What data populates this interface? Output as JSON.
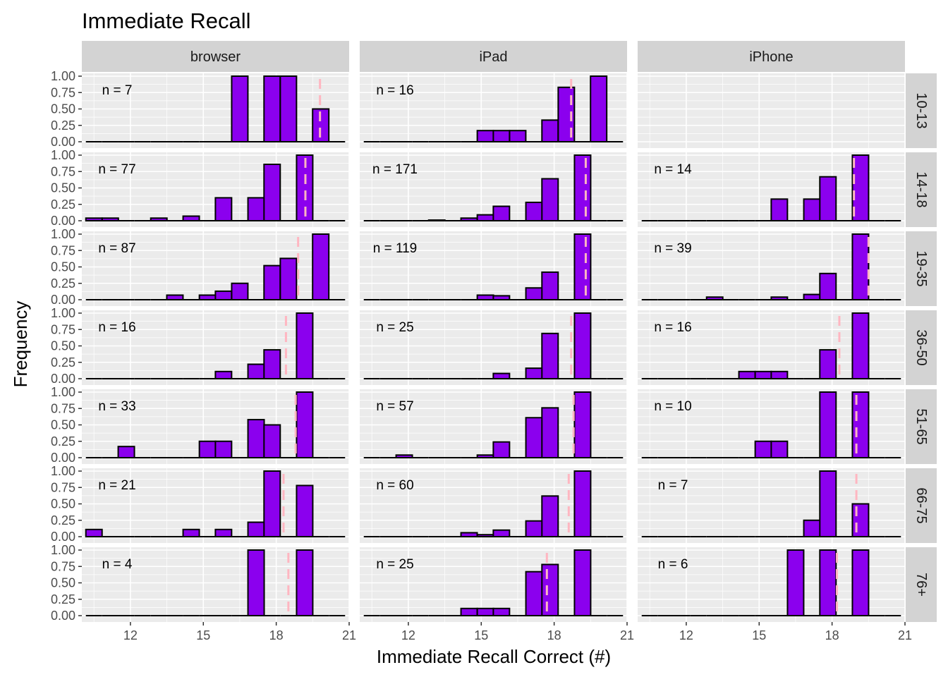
{
  "chart_data": {
    "type": "bar",
    "title": "Immediate Recall",
    "xlabel": "Immediate Recall Correct (#)",
    "ylabel": "Frequency",
    "xlim": [
      10,
      21
    ],
    "ylim": [
      0,
      1
    ],
    "x_ticks": [
      12,
      15,
      18,
      21
    ],
    "x_tick_labels": [
      "12",
      "15",
      "18",
      "21"
    ],
    "y_ticks": [
      0,
      0.25,
      0.5,
      0.75,
      1
    ],
    "y_tick_labels": [
      "0.00",
      "0.25",
      "0.50",
      "0.75",
      "1.00"
    ],
    "bin_centers": [
      10.5,
      11.17,
      11.83,
      12.5,
      13.17,
      13.83,
      14.5,
      15.17,
      15.83,
      16.5,
      17.17,
      17.83,
      18.5,
      19.17,
      19.83,
      20.5
    ],
    "columns": [
      "browser",
      "iPad",
      "iPhone"
    ],
    "rows": [
      "10-13",
      "14-18",
      "19-35",
      "36-50",
      "51-65",
      "66-75",
      "76+"
    ],
    "grid": true,
    "colors": {
      "bar_fill": "#8B00EE",
      "bar_outline": "#000000",
      "mean_line": "#FFB6C1",
      "panel_bg": "#EBEBEB",
      "strip_bg": "#D3D3D3",
      "grid": "#FFFFFF"
    },
    "panels": [
      {
        "row": "10-13",
        "column": "browser",
        "n_label": "n = 7",
        "mean": 19.8,
        "values": [
          0,
          0,
          0,
          0,
          0,
          0,
          0,
          0,
          0,
          1,
          0,
          1,
          1,
          0,
          0.5,
          0
        ]
      },
      {
        "row": "10-13",
        "column": "iPad",
        "n_label": "n = 16",
        "mean": 18.7,
        "values": [
          0,
          0,
          0,
          0,
          0,
          0,
          0,
          0.17,
          0.17,
          0.17,
          0,
          0.33,
          0.83,
          0,
          1,
          0
        ]
      },
      {
        "row": "10-13",
        "column": "iPhone",
        "n_label": "",
        "mean": null,
        "values": []
      },
      {
        "row": "14-18",
        "column": "browser",
        "n_label": "n = 77",
        "mean": 19.2,
        "values": [
          0.04,
          0.04,
          0,
          0,
          0.04,
          0,
          0.07,
          0,
          0.35,
          0,
          0.35,
          0.86,
          0,
          1,
          0,
          0
        ]
      },
      {
        "row": "14-18",
        "column": "iPad",
        "n_label": "n = 171",
        "mean": 19.3,
        "values": [
          0,
          0,
          0,
          0,
          0.01,
          0,
          0.04,
          0.09,
          0.22,
          0,
          0.28,
          0.64,
          0,
          1,
          0,
          0
        ]
      },
      {
        "row": "14-18",
        "column": "iPhone",
        "n_label": "n = 14",
        "mean": 18.9,
        "values": [
          0,
          0,
          0,
          0,
          0,
          0,
          0,
          0,
          0.33,
          0,
          0.33,
          0.67,
          0,
          1,
          0,
          0
        ]
      },
      {
        "row": "19-35",
        "column": "browser",
        "n_label": "n = 87",
        "mean": 18.9,
        "values": [
          0,
          0,
          0,
          0,
          0,
          0.07,
          0,
          0.07,
          0.13,
          0.25,
          0,
          0.52,
          0.63,
          0,
          1,
          0
        ]
      },
      {
        "row": "19-35",
        "column": "iPad",
        "n_label": "n = 119",
        "mean": 19.3,
        "values": [
          0,
          0,
          0,
          0,
          0,
          0,
          0,
          0.07,
          0.06,
          0,
          0.18,
          0.42,
          0,
          1,
          0,
          0
        ]
      },
      {
        "row": "19-35",
        "column": "iPhone",
        "n_label": "n = 39",
        "mean": 19.5,
        "values": [
          0,
          0,
          0,
          0,
          0.04,
          0,
          0,
          0,
          0.04,
          0,
          0.08,
          0.4,
          0,
          1,
          0,
          0
        ]
      },
      {
        "row": "36-50",
        "column": "browser",
        "n_label": "n = 16",
        "mean": 18.4,
        "values": [
          0,
          0,
          0,
          0,
          0,
          0,
          0,
          0,
          0.11,
          0,
          0.22,
          0.44,
          0,
          1,
          0,
          0
        ]
      },
      {
        "row": "36-50",
        "column": "iPad",
        "n_label": "n = 25",
        "mean": 18.7,
        "values": [
          0,
          0,
          0,
          0,
          0,
          0,
          0,
          0,
          0.08,
          0,
          0.16,
          0.69,
          0,
          1,
          0,
          0
        ]
      },
      {
        "row": "36-50",
        "column": "iPhone",
        "n_label": "n = 16",
        "mean": 18.3,
        "values": [
          0,
          0,
          0,
          0,
          0,
          0,
          0.11,
          0.11,
          0.11,
          0,
          0,
          0.44,
          0,
          1,
          0,
          0
        ]
      },
      {
        "row": "51-65",
        "column": "browser",
        "n_label": "n = 33",
        "mean": 18.8,
        "values": [
          0,
          0,
          0.17,
          0,
          0,
          0,
          0,
          0.25,
          0.25,
          0,
          0.58,
          0.5,
          0,
          1,
          0,
          0
        ]
      },
      {
        "row": "51-65",
        "column": "iPad",
        "n_label": "n = 57",
        "mean": 18.8,
        "values": [
          0,
          0,
          0.04,
          0,
          0,
          0,
          0,
          0.04,
          0.24,
          0,
          0.61,
          0.76,
          0,
          1,
          0,
          0
        ]
      },
      {
        "row": "51-65",
        "column": "iPhone",
        "n_label": "n = 10",
        "mean": 19,
        "values": [
          0,
          0,
          0,
          0,
          0,
          0,
          0,
          0.25,
          0.25,
          0,
          0,
          1,
          0,
          1,
          0,
          0
        ]
      },
      {
        "row": "66-75",
        "column": "browser",
        "n_label": "n = 21",
        "mean": 18.3,
        "values": [
          0.11,
          0,
          0,
          0,
          0,
          0,
          0.11,
          0,
          0.11,
          0,
          0.22,
          1,
          0,
          0.78,
          0,
          0
        ]
      },
      {
        "row": "66-75",
        "column": "iPad",
        "n_label": "n = 60",
        "mean": 18.6,
        "values": [
          0,
          0,
          0,
          0,
          0,
          0,
          0.06,
          0.03,
          0.1,
          0,
          0.24,
          0.62,
          0,
          1,
          0,
          0
        ]
      },
      {
        "row": "66-75",
        "column": "iPhone",
        "n_label": "n = 7",
        "mean": 19,
        "values": [
          0,
          0,
          0,
          0,
          0,
          0,
          0,
          0,
          0,
          0,
          0.25,
          1,
          0,
          0.5,
          0,
          0
        ]
      },
      {
        "row": "76+",
        "column": "browser",
        "n_label": "n = 4",
        "mean": 18.5,
        "values": [
          0,
          0,
          0,
          0,
          0,
          0,
          0,
          0,
          0,
          0,
          1,
          0,
          0,
          1,
          0,
          0
        ]
      },
      {
        "row": "76+",
        "column": "iPad",
        "n_label": "n = 25",
        "mean": 17.7,
        "values": [
          0,
          0,
          0,
          0,
          0,
          0,
          0.11,
          0.11,
          0.11,
          0,
          0.67,
          0.78,
          0,
          1,
          0,
          0
        ]
      },
      {
        "row": "76+",
        "column": "iPhone",
        "n_label": "n = 6",
        "mean": 18.2,
        "values": [
          0,
          0,
          0,
          0,
          0,
          0,
          0,
          0,
          0,
          1,
          0,
          1,
          0,
          1,
          0,
          0
        ]
      }
    ]
  }
}
